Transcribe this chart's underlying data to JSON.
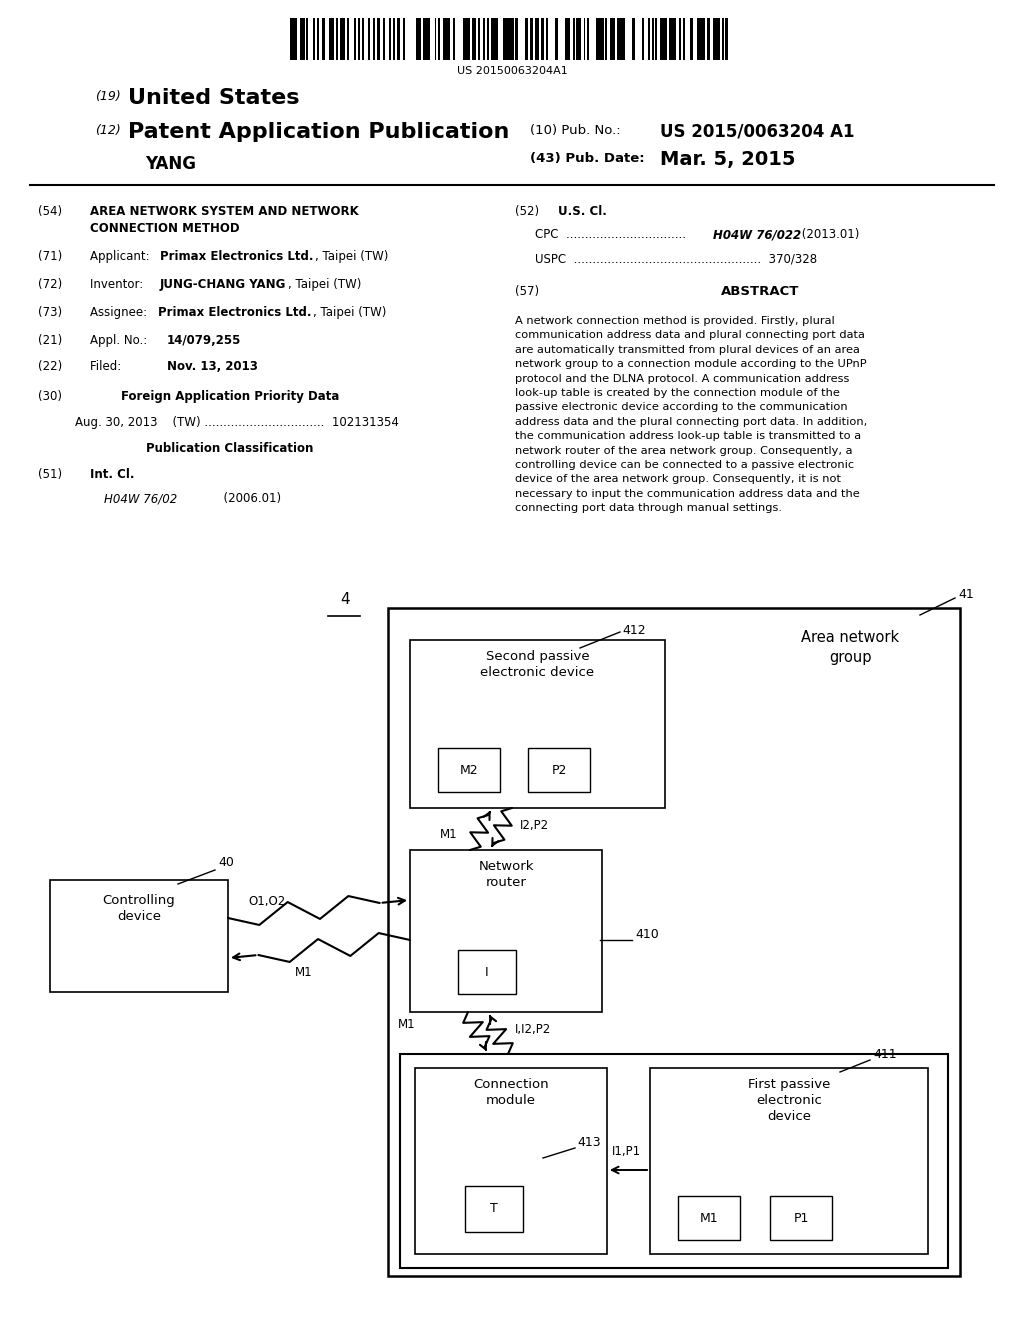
{
  "bg_color": "#ffffff",
  "fig_width": 10.24,
  "fig_height": 13.2,
  "barcode_text": "US 20150063204A1",
  "header_country_num": "(19)",
  "header_country": "United States",
  "header_type_num": "(12)",
  "header_type": "Patent Application Publication",
  "header_inventor": "YANG",
  "header_pub_label": "(10) Pub. No.:",
  "header_pub_num": "US 2015/0063204 A1",
  "header_date_label": "(43) Pub. Date:",
  "header_date": "Mar. 5, 2015",
  "abstract_text": "A network connection method is provided. Firstly, plural\ncommunication address data and plural connecting port data\nare automatically transmitted from plural devices of an area\nnetwork group to a connection module according to the UPnP\nprotocol and the DLNA protocol. A communication address\nlook-up table is created by the connection module of the\npassive electronic device according to the communication\naddress data and the plural connecting port data. In addition,\nthe communication address look-up table is transmitted to a\nnetwork router of the area network group. Consequently, a\ncontrolling device can be connected to a passive electronic\ndevice of the area network group. Consequently, it is not\nnecessary to input the communication address data and the\nconnecting port data through manual settings.",
  "diag_label": "4"
}
